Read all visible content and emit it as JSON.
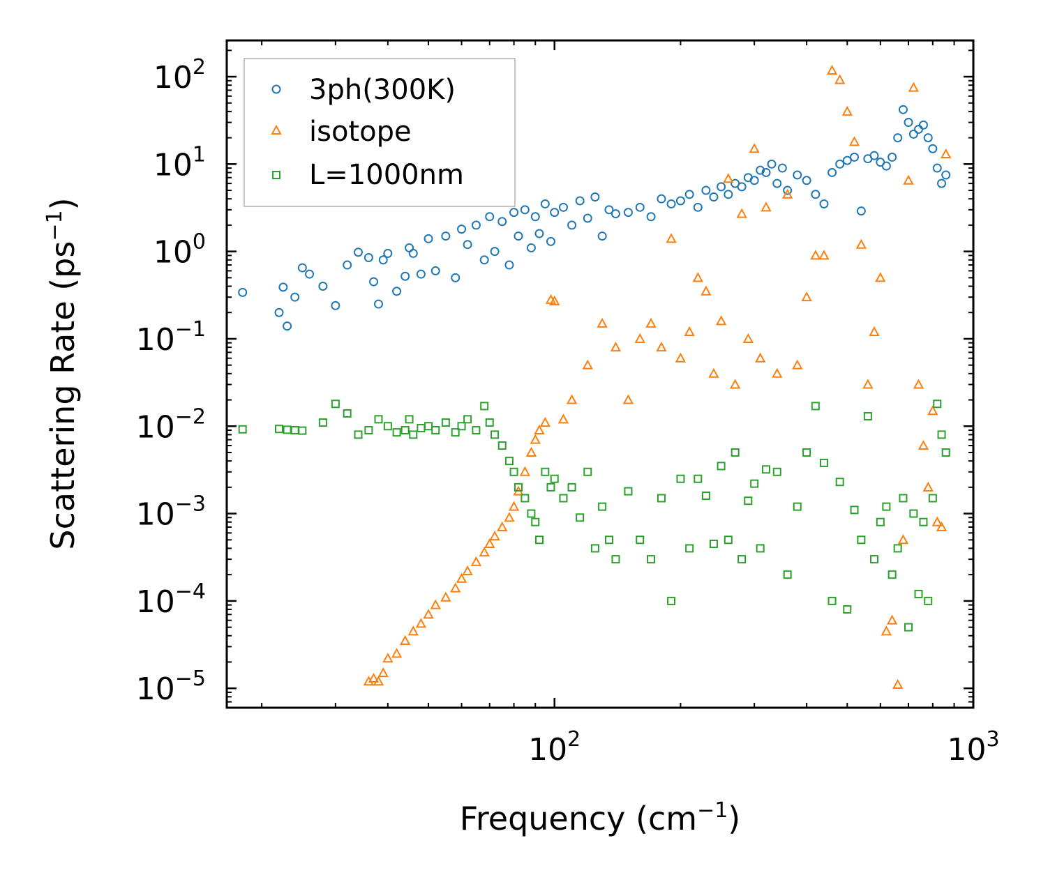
{
  "chart_data": {
    "type": "scatter",
    "title": "",
    "xlabel": "Frequency (cm",
    "xlabel_sup": "−1",
    "xlabel_tail": ")",
    "ylabel": "Scattering Rate (ps",
    "ylabel_sup": "−1",
    "ylabel_tail": ")",
    "xscale": "log",
    "yscale": "log",
    "xlim": [
      16.5,
      1000
    ],
    "ylim": [
      6e-06,
      260
    ],
    "x_ticks": [
      {
        "value": 100,
        "base": "10",
        "exp": "2"
      },
      {
        "value": 1000,
        "base": "10",
        "exp": "3"
      }
    ],
    "y_ticks": [
      {
        "value": 100,
        "base": "10",
        "exp": "2"
      },
      {
        "value": 10,
        "base": "10",
        "exp": "1"
      },
      {
        "value": 1,
        "base": "10",
        "exp": "0"
      },
      {
        "value": 0.1,
        "base": "10",
        "exp": "−1"
      },
      {
        "value": 0.01,
        "base": "10",
        "exp": "−2"
      },
      {
        "value": 0.001,
        "base": "10",
        "exp": "−3"
      },
      {
        "value": 0.0001,
        "base": "10",
        "exp": "−4"
      },
      {
        "value": 1e-05,
        "base": "10",
        "exp": "−5"
      }
    ],
    "legend_position": "top-left",
    "series": [
      {
        "name": "3ph(300K)",
        "marker": "circle",
        "color": "#1f77b4",
        "x": [
          18,
          22,
          22.5,
          23,
          24,
          25,
          26,
          28,
          30,
          32,
          34,
          36,
          37,
          38,
          39,
          40,
          42,
          44,
          45,
          46,
          48,
          50,
          52,
          55,
          58,
          60,
          62,
          65,
          68,
          70,
          72,
          75,
          78,
          80,
          82,
          85,
          88,
          90,
          92,
          95,
          98,
          100,
          105,
          110,
          115,
          120,
          125,
          130,
          135,
          140,
          150,
          160,
          170,
          180,
          190,
          200,
          210,
          220,
          230,
          240,
          250,
          260,
          270,
          280,
          290,
          300,
          310,
          320,
          330,
          340,
          350,
          360,
          380,
          400,
          420,
          440,
          460,
          480,
          500,
          520,
          540,
          560,
          580,
          600,
          620,
          640,
          660,
          680,
          700,
          720,
          740,
          760,
          780,
          800,
          820,
          840,
          860
        ],
        "y": [
          0.34,
          0.2,
          0.39,
          0.14,
          0.3,
          0.65,
          0.55,
          0.4,
          0.24,
          0.7,
          0.98,
          0.85,
          0.45,
          0.25,
          0.8,
          0.95,
          0.35,
          0.52,
          1.1,
          0.95,
          0.55,
          1.4,
          0.6,
          1.5,
          0.5,
          1.8,
          1.2,
          2.0,
          0.8,
          2.5,
          1.0,
          2.2,
          0.7,
          2.8,
          1.5,
          3.0,
          1.1,
          2.5,
          1.6,
          3.5,
          1.3,
          2.8,
          3.2,
          2.0,
          3.8,
          2.4,
          4.2,
          1.5,
          3.0,
          2.7,
          2.8,
          3.2,
          2.5,
          4.0,
          3.5,
          3.8,
          4.5,
          3.2,
          5.0,
          4.2,
          5.5,
          4.5,
          6.0,
          5.5,
          7.0,
          6.5,
          8.5,
          8.0,
          10.0,
          6.0,
          9.0,
          5.0,
          7.5,
          6.5,
          4.5,
          3.5,
          8.0,
          10.0,
          11.0,
          12.0,
          2.9,
          11.5,
          12.5,
          10.5,
          9.5,
          12.0,
          20.0,
          42.0,
          30.0,
          22.0,
          25.0,
          28.0,
          20.0,
          15.0,
          9.0,
          6.0,
          7.5
        ]
      },
      {
        "name": "isotope",
        "marker": "triangle",
        "color": "#ff7f0e",
        "x": [
          36,
          37,
          38,
          39,
          40,
          42,
          44,
          46,
          48,
          50,
          52,
          55,
          58,
          60,
          62,
          65,
          68,
          70,
          72,
          75,
          78,
          80,
          82,
          85,
          88,
          90,
          92,
          95,
          98,
          100,
          105,
          110,
          120,
          130,
          140,
          150,
          160,
          170,
          180,
          190,
          200,
          210,
          220,
          230,
          240,
          250,
          260,
          270,
          280,
          290,
          300,
          310,
          320,
          340,
          360,
          380,
          400,
          420,
          440,
          460,
          480,
          500,
          520,
          540,
          560,
          580,
          600,
          620,
          640,
          660,
          680,
          700,
          720,
          740,
          760,
          780,
          800,
          820,
          840,
          860
        ],
        "y": [
          1.2e-05,
          1.3e-05,
          1.2e-05,
          1.5e-05,
          2.2e-05,
          2.5e-05,
          3.5e-05,
          4.5e-05,
          5.5e-05,
          7e-05,
          9e-05,
          0.00011,
          0.00014,
          0.00018,
          0.00022,
          0.00028,
          0.00036,
          0.00045,
          0.00055,
          0.0007,
          0.0009,
          0.0012,
          0.0018,
          0.003,
          0.005,
          0.007,
          0.009,
          0.011,
          0.28,
          0.27,
          0.012,
          0.02,
          0.05,
          0.15,
          0.08,
          0.02,
          0.1,
          0.15,
          0.08,
          1.4,
          0.06,
          0.12,
          0.5,
          0.35,
          0.04,
          0.16,
          6.8,
          0.03,
          2.7,
          0.1,
          15,
          0.06,
          3.2,
          0.04,
          4.5,
          0.05,
          0.3,
          0.9,
          0.9,
          118,
          92,
          40,
          18,
          1.2,
          0.03,
          0.12,
          0.5,
          4.5e-05,
          6e-05,
          1.1e-05,
          0.0005,
          6.5,
          75,
          0.03,
          0.006,
          0.002,
          0.015,
          0.0008,
          0.0007,
          13
        ]
      },
      {
        "name": "L=1000nm",
        "marker": "square",
        "color": "#2ca02c",
        "x": [
          18,
          22,
          23,
          24,
          25,
          28,
          30,
          32,
          34,
          36,
          38,
          40,
          42,
          44,
          45,
          46,
          48,
          50,
          52,
          55,
          58,
          60,
          62,
          65,
          68,
          70,
          72,
          75,
          78,
          80,
          82,
          85,
          88,
          90,
          92,
          95,
          98,
          100,
          105,
          110,
          115,
          120,
          125,
          130,
          135,
          140,
          150,
          160,
          170,
          180,
          190,
          200,
          210,
          220,
          230,
          240,
          250,
          260,
          270,
          280,
          290,
          300,
          310,
          320,
          340,
          360,
          380,
          400,
          420,
          440,
          460,
          480,
          500,
          520,
          540,
          560,
          580,
          600,
          620,
          640,
          660,
          680,
          700,
          720,
          740,
          760,
          780,
          800,
          820,
          840,
          860
        ],
        "y": [
          0.0092,
          0.0093,
          0.0091,
          0.009,
          0.0089,
          0.011,
          0.018,
          0.014,
          0.008,
          0.009,
          0.012,
          0.01,
          0.0085,
          0.009,
          0.012,
          0.008,
          0.0095,
          0.01,
          0.009,
          0.011,
          0.0085,
          0.01,
          0.012,
          0.009,
          0.017,
          0.011,
          0.008,
          0.006,
          0.004,
          0.003,
          0.002,
          0.0015,
          0.001,
          0.0008,
          0.0005,
          0.003,
          0.002,
          0.0025,
          0.0015,
          0.002,
          0.0009,
          0.003,
          0.0004,
          0.0012,
          0.0005,
          0.0003,
          0.0018,
          0.0005,
          0.0003,
          0.0015,
          0.0001,
          0.0025,
          0.0004,
          0.0025,
          0.0016,
          0.00045,
          0.0035,
          0.0005,
          0.005,
          0.0003,
          0.0014,
          0.0022,
          0.0004,
          0.0032,
          0.003,
          0.0002,
          0.0012,
          0.005,
          0.017,
          0.0038,
          0.0001,
          0.0023,
          8e-05,
          0.0011,
          0.0005,
          0.013,
          0.0003,
          0.0008,
          0.0012,
          0.0002,
          0.0004,
          0.0015,
          5e-05,
          0.001,
          0.00012,
          0.0008,
          0.0001,
          0.0015,
          0.018,
          0.008,
          0.005
        ]
      }
    ]
  }
}
